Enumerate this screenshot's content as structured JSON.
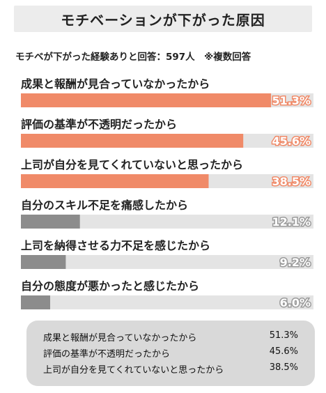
{
  "header": {
    "title": "モチベーションが下がった原因",
    "subtitle": "モチベが下がった経験ありと回答：597人　※複数回答"
  },
  "chart_data": {
    "type": "bar",
    "orientation": "horizontal",
    "categories": [
      "成果と報酬が見合っていなかったから",
      "評価の基準が不透明だったから",
      "上司が自分を見てくれていないと思ったから",
      "自分のスキル不足を痛感したから",
      "上司を納得させる力不足を感じたから",
      "自分の態度が悪かったと感じたから"
    ],
    "values": [
      51.3,
      45.6,
      38.5,
      12.1,
      9.2,
      6.0
    ],
    "value_labels": [
      "51.3%",
      "45.6%",
      "38.5%",
      "12.1%",
      "9.2%",
      "6.0%"
    ],
    "highlight_count": 3,
    "xlim": [
      0,
      60
    ],
    "colors": {
      "highlight": "#f08a68",
      "normal": "#8c8c8c",
      "track": "#e4e4e4"
    }
  },
  "summary": {
    "rows": [
      {
        "label": "成果と報酬が見合っていなかったから",
        "value": "51.3%"
      },
      {
        "label": "評価の基準が不透明だったから",
        "value": "45.6%"
      },
      {
        "label": "上司が自分を見てくれていないと思ったから",
        "value": "38.5%"
      }
    ]
  }
}
